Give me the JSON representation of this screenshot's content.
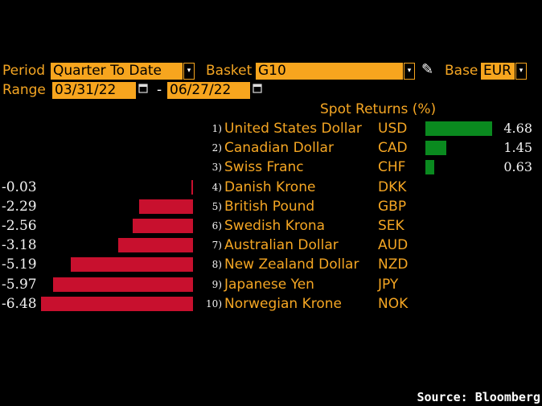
{
  "controls": {
    "period_label": "Period",
    "period_value": "Quarter To Date",
    "basket_label": "Basket",
    "basket_value": "G10",
    "base_label": "Base",
    "base_value": "EUR",
    "range_label": "Range",
    "range_start": "03/31/22",
    "range_sep": "-",
    "range_end": "06/27/22",
    "dropdown_arrow": "▾",
    "calendar_glyph": "📅",
    "pencil_glyph": "✎"
  },
  "header": {
    "title": "Spot Returns (%)"
  },
  "colors": {
    "negative": "#c8102e",
    "positive": "#0a8a1f",
    "accent": "#f5a623"
  },
  "currencies": [
    {
      "num": "1)",
      "name": "United States Dollar",
      "code": "USD",
      "value": 4.68,
      "label": "4.68"
    },
    {
      "num": "2)",
      "name": "Canadian Dollar",
      "code": "CAD",
      "value": 1.45,
      "label": "1.45"
    },
    {
      "num": "3)",
      "name": "Swiss Franc",
      "code": "CHF",
      "value": 0.63,
      "label": "0.63"
    },
    {
      "num": "4)",
      "name": "Danish Krone",
      "code": "DKK",
      "value": -0.03,
      "label": "-0.03"
    },
    {
      "num": "5)",
      "name": "British Pound",
      "code": "GBP",
      "value": -2.29,
      "label": "-2.29"
    },
    {
      "num": "6)",
      "name": "Swedish Krona",
      "code": "SEK",
      "value": -2.56,
      "label": "-2.56"
    },
    {
      "num": "7)",
      "name": "Australian Dollar",
      "code": "AUD",
      "value": -3.18,
      "label": "-3.18"
    },
    {
      "num": "8)",
      "name": "New Zealand Dollar",
      "code": "NZD",
      "value": -5.19,
      "label": "-5.19"
    },
    {
      "num": "9)",
      "name": "Japanese Yen",
      "code": "JPY",
      "value": -5.97,
      "label": "-5.97"
    },
    {
      "num": "10)",
      "name": "Norwegian Krone",
      "code": "NOK",
      "value": -6.48,
      "label": "-6.48"
    }
  ],
  "footer": {
    "source": "Source: Bloomberg"
  }
}
